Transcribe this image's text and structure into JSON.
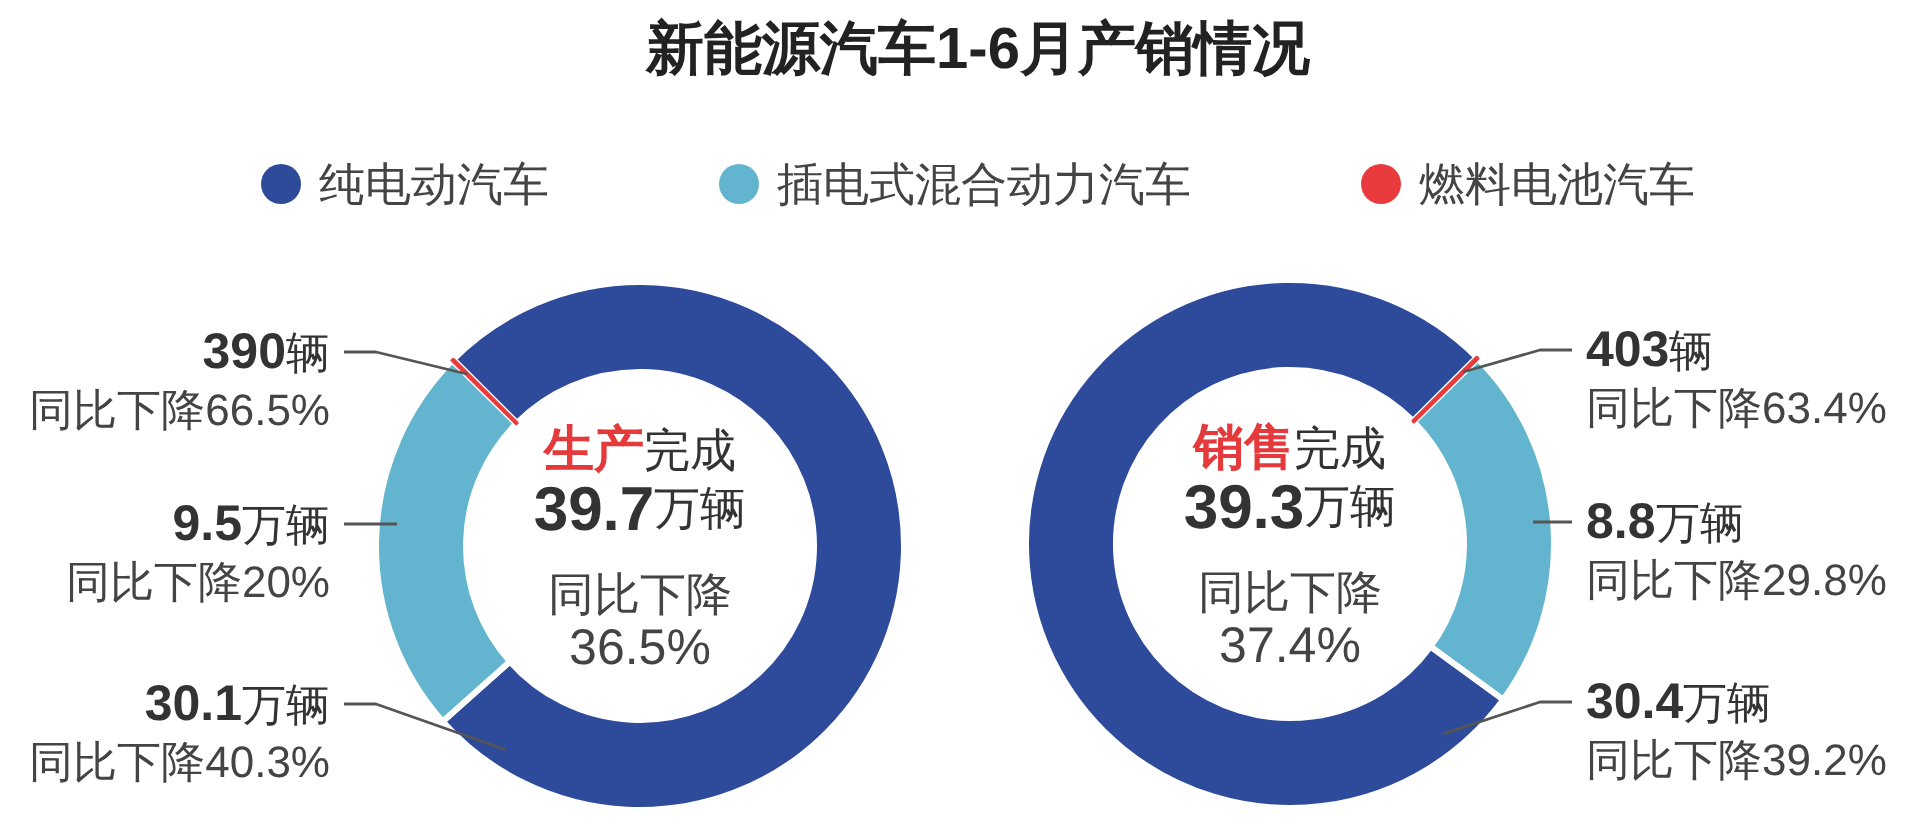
{
  "chart_data": [
    {
      "type": "donut",
      "title": "新能源汽车1-6月产销情况",
      "legend": "top",
      "categories": [
        "纯电动汽车",
        "插电式混合动力汽车",
        "燃料电池汽车"
      ],
      "values": [
        30.1,
        9.5,
        0.039
      ],
      "colors": [
        "#2e4b9b",
        "#63b5cf",
        "#e93b3d"
      ],
      "value_labels": [
        "30.1万辆",
        "9.5万辆",
        null
      ],
      "annotations": [
        "生产",
        "完成",
        "39.7万辆",
        "同比下降",
        "36.5%",
        "同比下降40.3%",
        "同比下降20%",
        "390辆",
        "同比下降66.5%"
      ]
    },
    {
      "type": "donut",
      "categories": [
        null,
        null,
        null
      ],
      "values": [
        30.4,
        8.8,
        0.0403
      ],
      "colors": [
        "#2e4b9b",
        "#63b5cf",
        "#e93b3d"
      ],
      "value_labels": [
        "30.4万辆",
        "8.8万辆",
        null
      ],
      "annotations": [
        "销售",
        "完成",
        "39.3万辆",
        "同比下降",
        "37.4%",
        "同比下降39.2%",
        "同比下降29.8%",
        "403辆",
        "同比下降63.4%"
      ]
    }
  ]
}
